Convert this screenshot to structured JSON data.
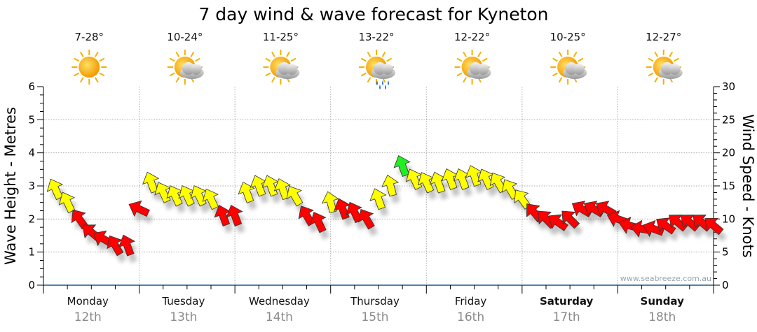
{
  "chart_data": {
    "type": "scatter",
    "title": "7 day wind & wave forecast for Kyneton",
    "ylabel_left": "Wave Height - Metres",
    "ylabel_right": "Wind Speed - Knots",
    "ylim_left": [
      0,
      6
    ],
    "ylim_right": [
      0,
      30
    ],
    "left_ticks": [
      "0",
      "1",
      "2",
      "3",
      "4",
      "5",
      "6"
    ],
    "right_ticks": [
      "0",
      "5",
      "10",
      "15",
      "20",
      "25",
      "30"
    ],
    "grid": true,
    "watermark": "www.seabreeze.com.au",
    "days": [
      {
        "name": "Monday",
        "date": "12th",
        "temp": "7-28°",
        "icon": "sunny-icon",
        "bold": false
      },
      {
        "name": "Tuesday",
        "date": "13th",
        "temp": "10-24°",
        "icon": "partly-cloudy-icon",
        "bold": false
      },
      {
        "name": "Wednesday",
        "date": "14th",
        "temp": "11-25°",
        "icon": "partly-cloudy-icon",
        "bold": false
      },
      {
        "name": "Thursday",
        "date": "15th",
        "temp": "13-22°",
        "icon": "showers-icon",
        "bold": false
      },
      {
        "name": "Friday",
        "date": "16th",
        "temp": "12-22°",
        "icon": "partly-cloudy-icon",
        "bold": false
      },
      {
        "name": "Saturday",
        "date": "17th",
        "temp": "10-25°",
        "icon": "partly-cloudy-icon",
        "bold": true
      },
      {
        "name": "Sunday",
        "date": "18th",
        "temp": "12-27°",
        "icon": "partly-cloudy-icon",
        "bold": true
      }
    ],
    "series": [
      {
        "name": "Wind Speed (knots)",
        "interval_hours": 3,
        "start_hour": 3,
        "values": [
          14.5,
          12.5,
          10,
          8,
          7,
          6,
          6,
          11.5,
          15.5,
          14,
          13.5,
          13.5,
          13.5,
          13,
          10.5,
          10.5,
          14,
          15,
          15,
          14.5,
          13.5,
          10.5,
          9.5,
          12.5,
          11.5,
          11,
          10,
          13,
          15,
          18,
          16,
          15.5,
          15.5,
          16,
          16,
          16.5,
          16,
          15.5,
          14.5,
          13,
          11,
          10,
          9.5,
          10,
          11.5,
          11.5,
          11.5,
          10,
          9,
          8.5,
          8.5,
          9,
          9.5,
          9.5,
          9.5,
          9
        ],
        "direction_deg": [
          -25,
          -25,
          -35,
          -50,
          -60,
          -30,
          -20,
          -65,
          -20,
          -25,
          -25,
          -25,
          -25,
          -25,
          -20,
          -20,
          -20,
          -20,
          -20,
          -20,
          -30,
          -30,
          -25,
          -15,
          -20,
          -25,
          -30,
          -20,
          -15,
          -20,
          -25,
          -25,
          -20,
          -20,
          -20,
          -20,
          -25,
          -30,
          -30,
          -35,
          -40,
          -45,
          -55,
          -45,
          -60,
          -60,
          -60,
          -70,
          -75,
          -80,
          -70,
          -55,
          -50,
          -50,
          -50,
          -50
        ]
      }
    ],
    "colors": {
      "calm": "#ff0000",
      "moderate": "#ffff00",
      "strong": "#22ee22",
      "axis": "#1f5a85",
      "grid": "#aaaaaa"
    },
    "thresholds_knots": {
      "moderate": 12,
      "strong": 18
    }
  }
}
